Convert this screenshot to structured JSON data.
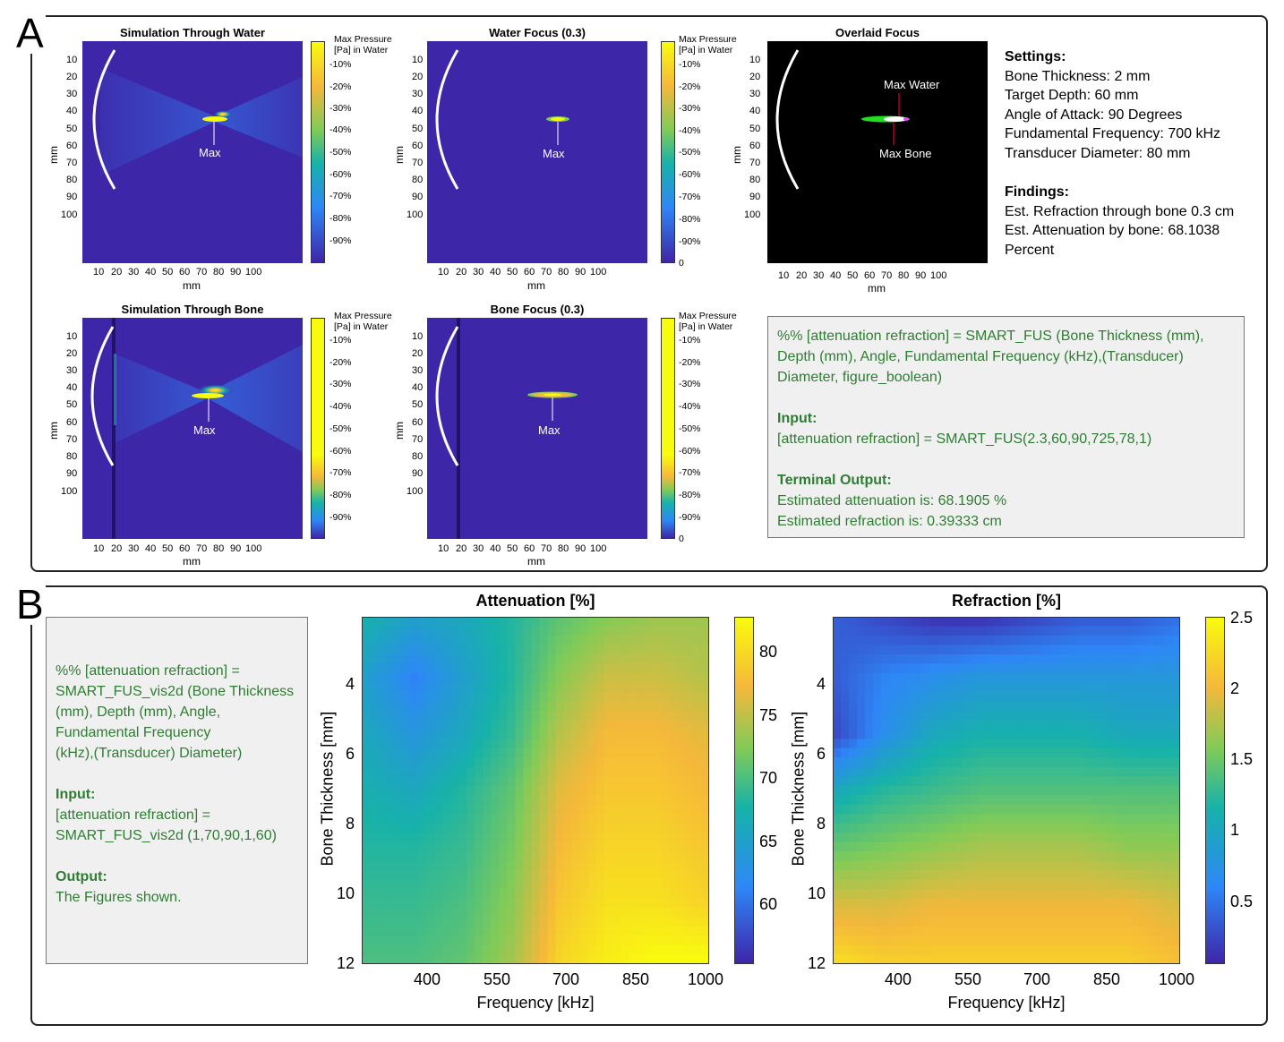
{
  "panel_a": {
    "letter": "A",
    "simulation_water": {
      "title": "Simulation Through Water",
      "y_ticks": [
        "10",
        "20",
        "30",
        "40",
        "50",
        "60",
        "70",
        "80",
        "90",
        "100"
      ],
      "x_ticks": [
        "10",
        "20",
        "30",
        "40",
        "50",
        "60",
        "70",
        "80",
        "90",
        "100"
      ],
      "xlabel": "mm",
      "ylabel": "mm",
      "marker": "Max",
      "colorbar_title": [
        "Max Pressure",
        "[Pa] in Water"
      ],
      "colorbar_ticks": [
        "-10%",
        "-20%",
        "-30%",
        "-40%",
        "-50%",
        "-60%",
        "-70%",
        "-80%",
        "-90%"
      ]
    },
    "water_focus": {
      "title": "Water Focus (0.3)",
      "y_ticks": [
        "10",
        "20",
        "30",
        "40",
        "50",
        "60",
        "70",
        "80",
        "90",
        "100"
      ],
      "x_ticks": [
        "10",
        "20",
        "30",
        "40",
        "50",
        "60",
        "70",
        "80",
        "90",
        "100"
      ],
      "xlabel": "mm",
      "ylabel": "mm",
      "marker": "Max",
      "colorbar_title": [
        "Max Pressure",
        "[Pa] in Water"
      ],
      "colorbar_ticks": [
        "-10%",
        "-20%",
        "-30%",
        "-40%",
        "-50%",
        "-60%",
        "-70%",
        "-80%",
        "-90%",
        "0"
      ]
    },
    "overlaid_focus": {
      "title": "Overlaid Focus",
      "y_ticks": [
        "10",
        "20",
        "30",
        "40",
        "50",
        "60",
        "70",
        "80",
        "90",
        "100"
      ],
      "x_ticks": [
        "10",
        "20",
        "30",
        "40",
        "50",
        "60",
        "70",
        "80",
        "90",
        "100"
      ],
      "xlabel": "mm",
      "ylabel": "mm",
      "marker_water": "Max Water",
      "marker_bone": "Max Bone"
    },
    "simulation_bone": {
      "title": "Simulation Through Bone",
      "y_ticks": [
        "10",
        "20",
        "30",
        "40",
        "50",
        "60",
        "70",
        "80",
        "90",
        "100"
      ],
      "x_ticks": [
        "10",
        "20",
        "30",
        "40",
        "50",
        "60",
        "70",
        "80",
        "90",
        "100"
      ],
      "xlabel": "mm",
      "ylabel": "mm",
      "marker": "Max",
      "colorbar_title": [
        "Max Pressure",
        "[Pa] in Water"
      ],
      "colorbar_ticks": [
        "-10%",
        "-20%",
        "-30%",
        "-40%",
        "-50%",
        "-60%",
        "-70%",
        "-80%",
        "-90%"
      ]
    },
    "bone_focus": {
      "title": "Bone Focus (0.3)",
      "y_ticks": [
        "10",
        "20",
        "30",
        "40",
        "50",
        "60",
        "70",
        "80",
        "90",
        "100"
      ],
      "x_ticks": [
        "10",
        "20",
        "30",
        "40",
        "50",
        "60",
        "70",
        "80",
        "90",
        "100"
      ],
      "xlabel": "mm",
      "ylabel": "mm",
      "marker": "Max",
      "colorbar_title": [
        "Max Pressure",
        "[Pa] in Water"
      ],
      "colorbar_ticks": [
        "-10%",
        "-20%",
        "-30%",
        "-40%",
        "-50%",
        "-60%",
        "-70%",
        "-80%",
        "-90%",
        "0"
      ]
    },
    "settings": {
      "heading": "Settings:",
      "lines": [
        "Bone Thickness: 2 mm",
        "Target Depth: 60 mm",
        "Angle of Attack: 90 Degrees",
        "Fundamental Frequency: 700 kHz",
        "Transducer Diameter: 80 mm"
      ]
    },
    "findings": {
      "heading": "Findings:",
      "lines": [
        "Est. Refraction through bone 0.3 cm",
        "Est. Attenuation by bone: 68.1038",
        "Percent"
      ]
    },
    "code": {
      "signature": [
        "%% [attenuation refraction] = SMART_FUS (Bone Thickness (mm),",
        "Depth (mm), Angle, Fundamental Frequency (kHz),(Transducer)",
        "Diameter, figure_boolean)"
      ],
      "input_heading": "Input:",
      "input": "[attenuation refraction] = SMART_FUS(2.3,60,90,725,78,1)",
      "output_heading": "Terminal Output:",
      "output": [
        "Estimated attenuation is: 68.1905 %",
        "Estimated refraction is: 0.39333 cm"
      ]
    }
  },
  "panel_b": {
    "letter": "B",
    "code": {
      "signature": [
        "%% [attenuation refraction] =",
        "SMART_FUS_vis2d (Bone Thickness",
        "(mm), Depth (mm), Angle,",
        "Fundamental Frequency",
        "(kHz),(Transducer) Diameter)"
      ],
      "input_heading": "Input:",
      "input": [
        "[attenuation refraction] =",
        "SMART_FUS_vis2d (1,70,90,1,60)"
      ],
      "output_heading": "Output:",
      "output": "The Figures shown."
    }
  },
  "colors": {
    "parula_dark": "#3e26a8",
    "parula_blue": "#2e87f7",
    "parula_cyan": "#17b2a9",
    "parula_green": "#80cb58",
    "parula_orange": "#f5b83a",
    "parula_yellow": "#f9fb0e",
    "code_green": "#2e7d32",
    "code_bg": "#f0f0f0"
  },
  "chart_data": [
    {
      "type": "heatmap",
      "title": "Attenuation [%]",
      "xlabel": "Frequency [kHz]",
      "ylabel": "Bone Thickness [mm]",
      "x_ticks": [
        "400",
        "550",
        "700",
        "850",
        "1000"
      ],
      "y_ticks": [
        "4",
        "6",
        "8",
        "10",
        "12"
      ],
      "xlim": [
        250,
        1000
      ],
      "ylim": [
        2,
        12
      ],
      "colorbar_ticks": [
        "80",
        "75",
        "70",
        "65",
        "60"
      ],
      "clim": [
        56,
        82
      ],
      "grid": [
        [
          66,
          64,
          65,
          67,
          70,
          72,
          73,
          73
        ],
        [
          64,
          61,
          64,
          67,
          72,
          75,
          75,
          74
        ],
        [
          65,
          63,
          65,
          68,
          74,
          77,
          77,
          76
        ],
        [
          66,
          65,
          67,
          70,
          76,
          78,
          78,
          77
        ],
        [
          67,
          67,
          68,
          71,
          77,
          79,
          79,
          78
        ],
        [
          68,
          68,
          69,
          72,
          78,
          80,
          80,
          79
        ],
        [
          69,
          69,
          70,
          73,
          79,
          81,
          82,
          82
        ]
      ]
    },
    {
      "type": "heatmap",
      "title": "Refraction [%]",
      "xlabel": "Frequency [kHz]",
      "ylabel": "Bone Thickness [mm]",
      "x_ticks": [
        "400",
        "550",
        "700",
        "850",
        "1000"
      ],
      "y_ticks": [
        "4",
        "6",
        "8",
        "10",
        "12"
      ],
      "xlim": [
        250,
        1000
      ],
      "ylim": [
        2,
        12
      ],
      "colorbar_ticks": [
        "2.5",
        "2",
        "1.5",
        "1",
        "0.5"
      ],
      "clim": [
        0,
        2.55
      ],
      "grid": [
        [
          0.3,
          0.2,
          0.1,
          0.1,
          0.2,
          0.3,
          0.3,
          0.4
        ],
        [
          0.3,
          0.5,
          0.6,
          0.7,
          0.7,
          0.7,
          0.7,
          0.7
        ],
        [
          0.2,
          0.6,
          0.9,
          1.0,
          1.0,
          1.0,
          0.9,
          0.9
        ],
        [
          0.9,
          1.1,
          1.2,
          1.3,
          1.3,
          1.3,
          1.3,
          1.3
        ],
        [
          1.4,
          1.5,
          1.6,
          1.7,
          1.7,
          1.7,
          1.6,
          1.6
        ],
        [
          1.9,
          1.9,
          2.0,
          2.0,
          2.0,
          2.0,
          2.0,
          1.9
        ],
        [
          2.3,
          2.2,
          2.2,
          2.2,
          2.2,
          2.2,
          2.2,
          2.1
        ]
      ]
    }
  ]
}
